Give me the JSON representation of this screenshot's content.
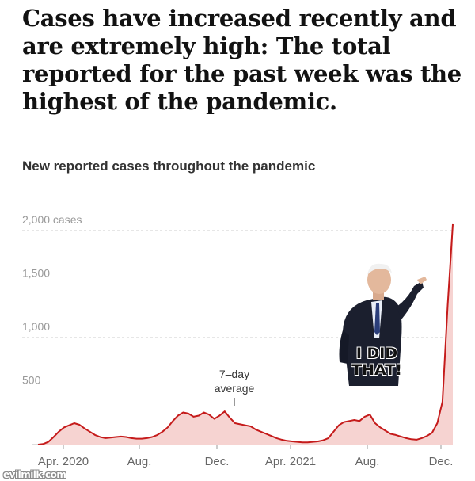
{
  "headline": "Cases have increased recently and are extremely high: The total reported for the past week was the highest of the pandemic.",
  "chart_title": "New reported cases throughout the pandemic",
  "meme_caption_line1": "I DID",
  "meme_caption_line2": "THAT!",
  "watermark": "evilmilk.com",
  "colors": {
    "line": "#c51b1b",
    "fill": "#f6d3d1",
    "grid": "#cccccc",
    "tick_text": "#999999",
    "xtick_text": "#666666"
  },
  "chart_data": {
    "type": "area",
    "title": "New reported cases throughout the pandemic",
    "ylim": [
      0,
      2200
    ],
    "grid": true,
    "yticks": [
      {
        "value": 2000,
        "label": "2,000 cases"
      },
      {
        "value": 1500,
        "label": "1,500"
      },
      {
        "value": 1000,
        "label": "1,000"
      },
      {
        "value": 500,
        "label": "500"
      }
    ],
    "xticks": [
      "Apr. 2020",
      "Aug.",
      "Dec.",
      "Apr. 2021",
      "Aug.",
      "Dec."
    ],
    "annotation": {
      "line1": "7–day",
      "line2": "average"
    },
    "series": [
      {
        "values": [
          0,
          5,
          25,
          70,
          120,
          160,
          180,
          200,
          185,
          150,
          120,
          90,
          70,
          60,
          65,
          70,
          75,
          70,
          60,
          55,
          55,
          60,
          70,
          90,
          120,
          160,
          220,
          270,
          300,
          290,
          260,
          270,
          300,
          280,
          240,
          270,
          310,
          250,
          200,
          190,
          180,
          170,
          140,
          120,
          100,
          80,
          60,
          45,
          35,
          30,
          25,
          20,
          20,
          25,
          30,
          40,
          60,
          120,
          180,
          210,
          220,
          230,
          220,
          260,
          280,
          200,
          160,
          130,
          100,
          90,
          75,
          60,
          50,
          45,
          60,
          80,
          110,
          200,
          400,
          1300,
          2060
        ]
      }
    ]
  }
}
